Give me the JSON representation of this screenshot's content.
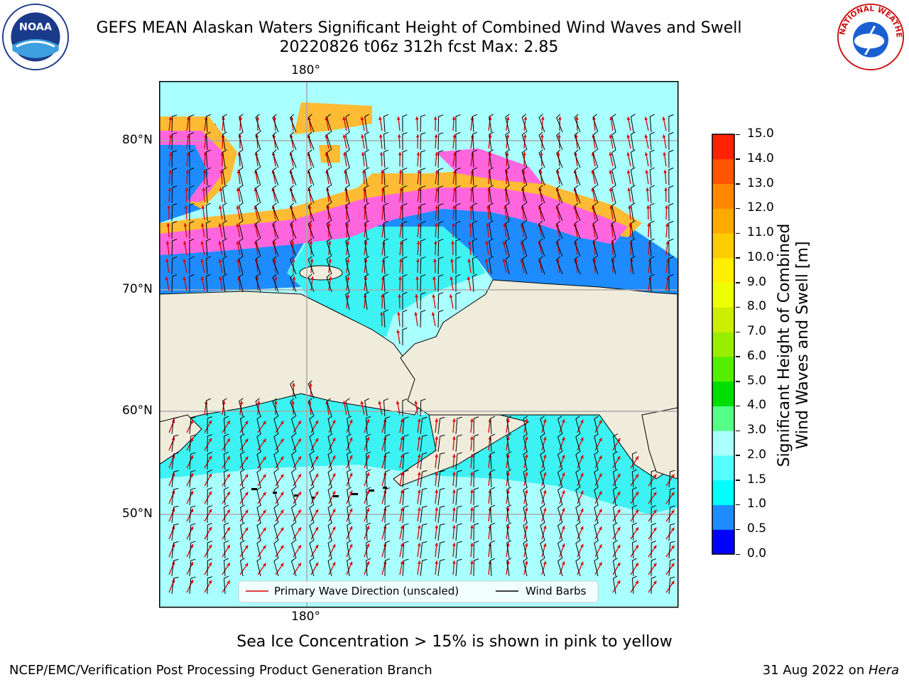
{
  "title": {
    "line1": "GEFS MEAN Alaskan Waters Significant Height of Combined Wind Waves and Swell",
    "line2": "20220826 t06z 312h fcst   Max: 2.85"
  },
  "map": {
    "lon_label_top": "180°",
    "lon_label_bottom": "180°",
    "lat_labels": [
      "80°N",
      "70°N",
      "60°N",
      "50°N"
    ],
    "colors": {
      "land": "#efecdc",
      "ocean_light": "#aaffff",
      "ocean_cyan": "#3cf2f2",
      "ocean_blue": "#1e8cff",
      "ice_pink": "#ff66dd",
      "ice_yellow": "#ffbb33",
      "arrow": "#dd0000"
    }
  },
  "legend": {
    "wave_label": "Primary Wave Direction (unscaled)",
    "wind_label": "Wind Barbs"
  },
  "colorbar": {
    "title_line1": "Significant Height of Combined",
    "title_line2": "Wind Waves and Swell [m]",
    "ticks": [
      "15.0",
      "14.0",
      "13.0",
      "12.0",
      "11.0",
      "10.0",
      "9.0",
      "8.0",
      "7.0",
      "6.0",
      "5.0",
      "4.0",
      "3.0",
      "2.0",
      "1.5",
      "1.0",
      "0.5",
      "0.0"
    ],
    "colors_bottom_to_top": [
      "#0000ff",
      "#1e8cff",
      "#00ffff",
      "#55ffff",
      "#aaffff",
      "#55ff88",
      "#00dd00",
      "#55ee00",
      "#99ee00",
      "#ccee00",
      "#eeff00",
      "#ffee00",
      "#ffcc00",
      "#ffaa00",
      "#ff8800",
      "#ff5500",
      "#ff2200"
    ]
  },
  "note": "Sea Ice Concentration > 15% is shown in pink to yellow",
  "footer": {
    "left": "NCEP/EMC/Verification Post Processing Product Generation Branch",
    "right_date": "31 Aug 2022 on ",
    "right_host": "Hera"
  },
  "logos": {
    "noaa_text": "NOAA",
    "nws_text": "NATIONAL WEATHER SERVICE"
  }
}
